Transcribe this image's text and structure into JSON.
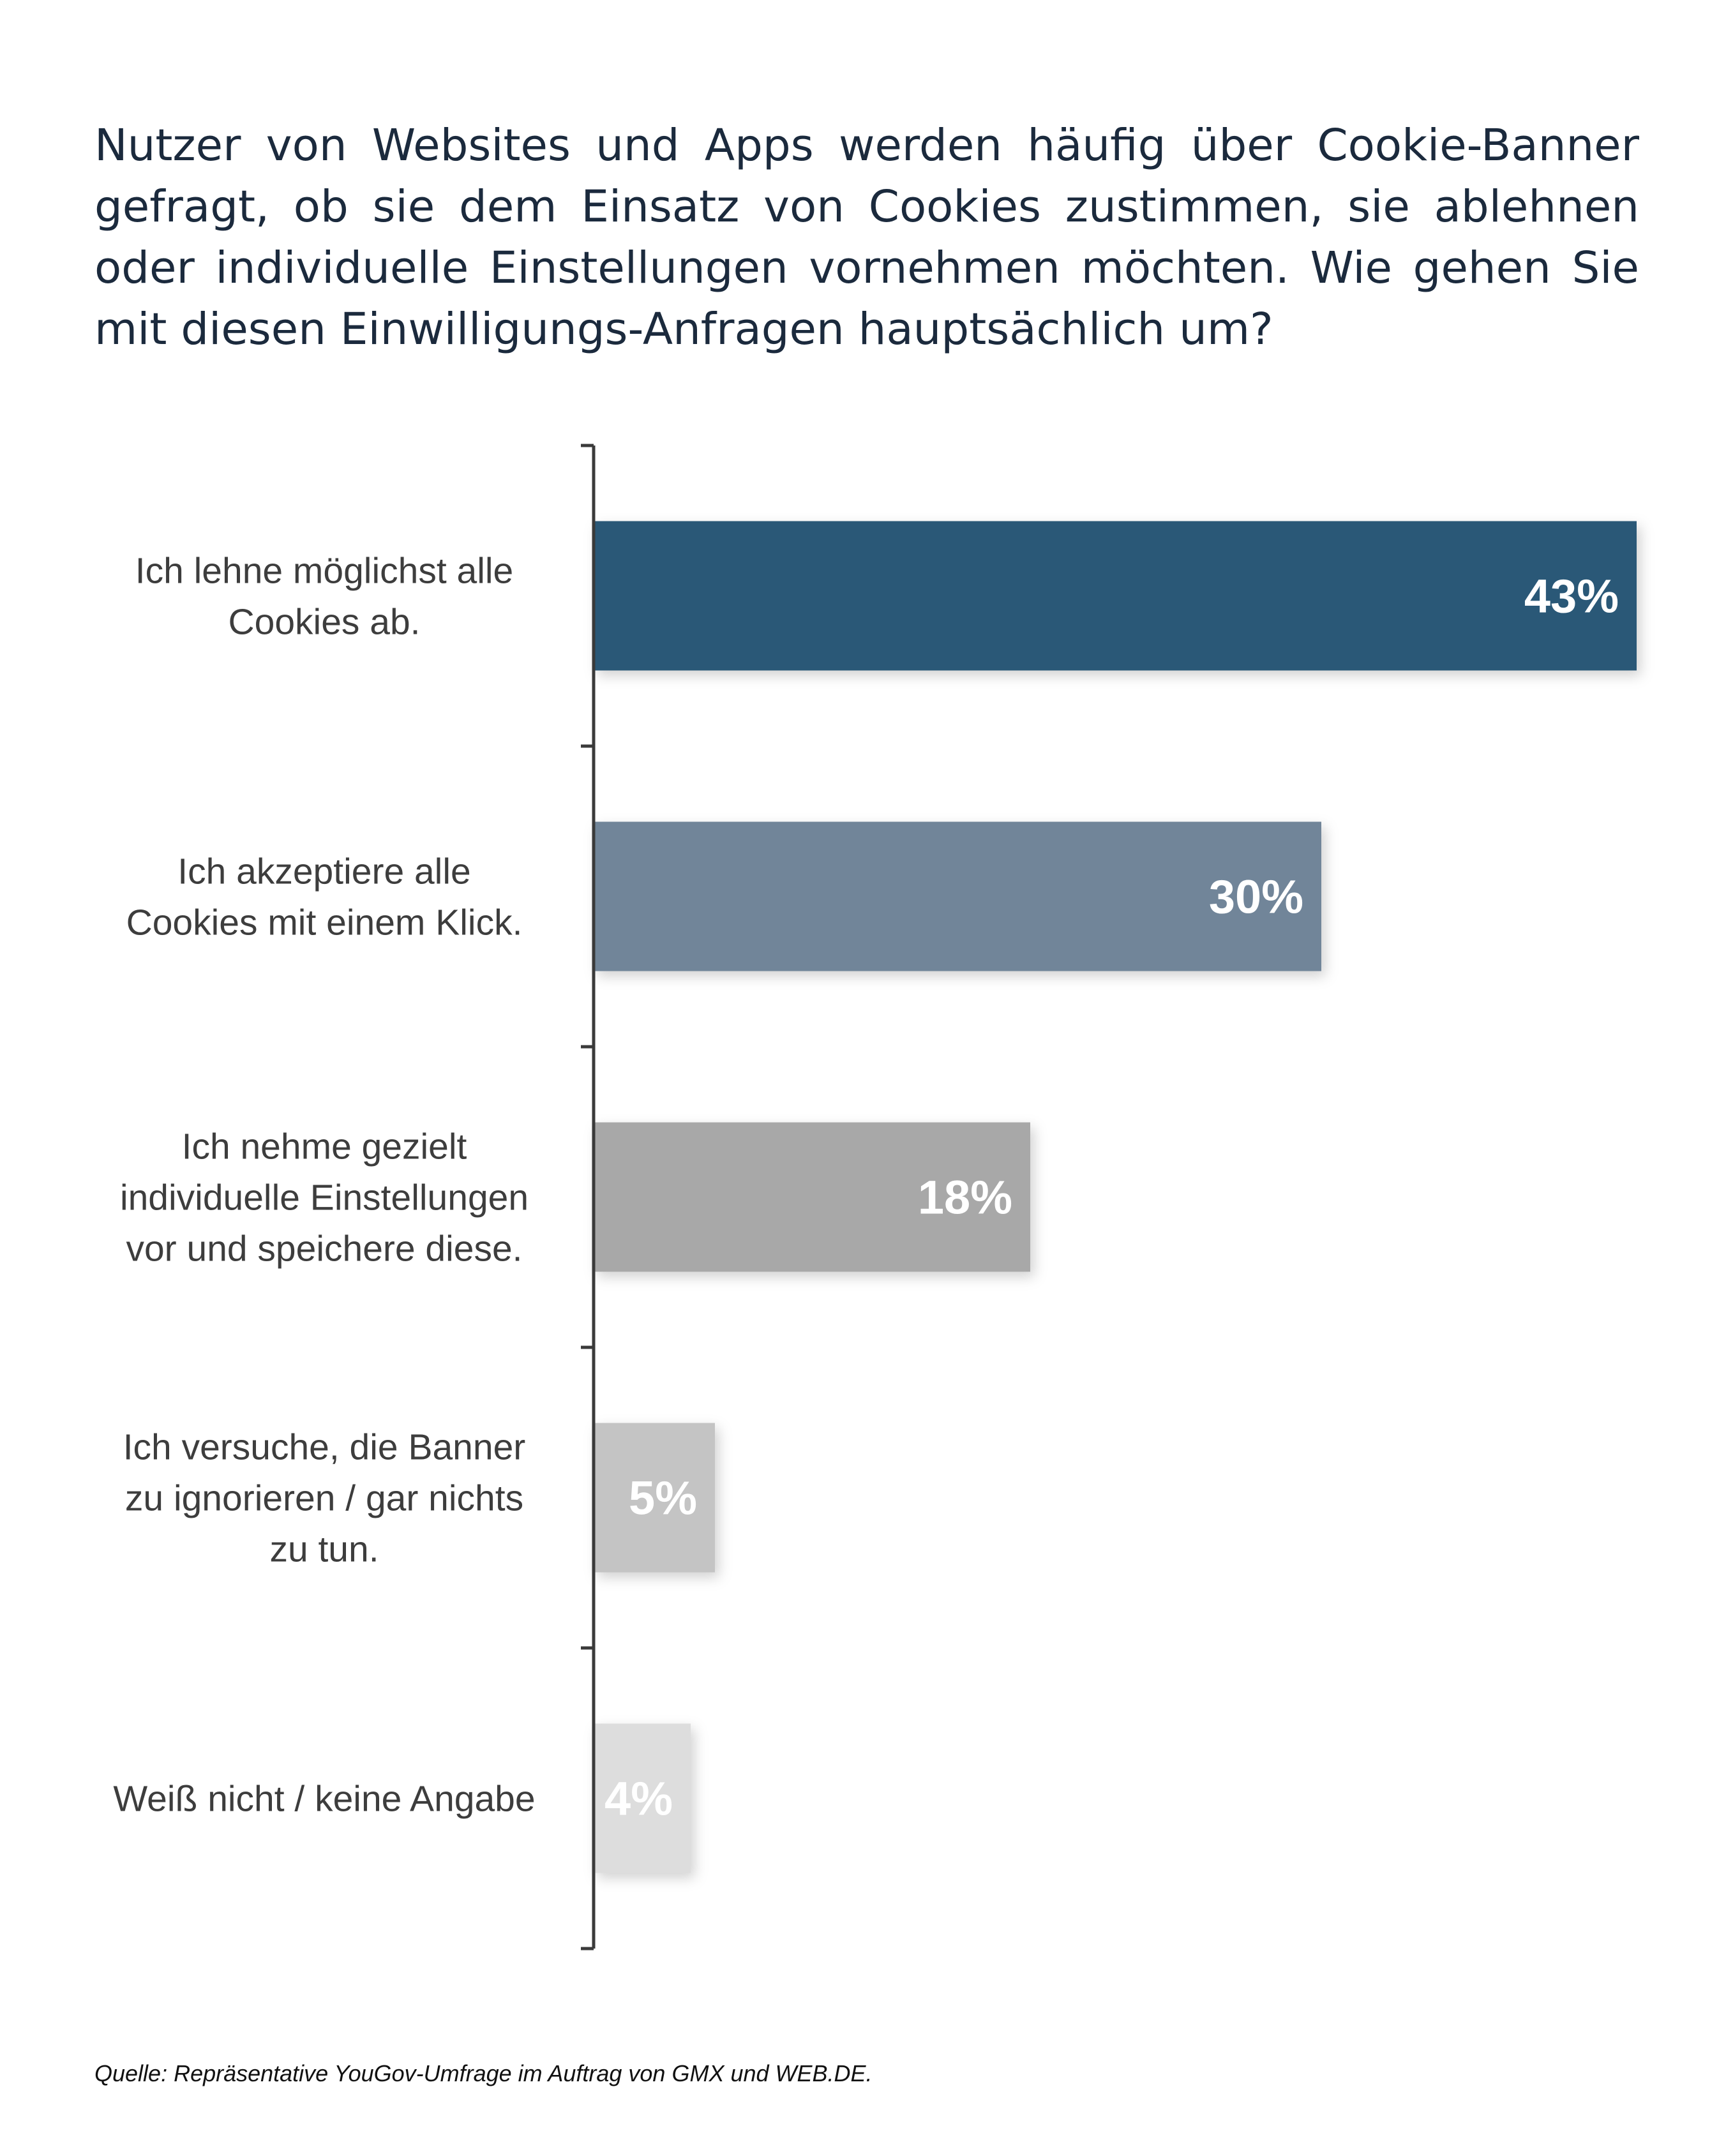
{
  "title": "Nutzer von Websites und Apps werden häufig über Cookie-Banner gefragt, ob sie dem Einsatz von Cookies zustimmen, sie ablehnen oder individuelle Einstellungen vornehmen möchten. Wie gehen Sie mit diesen Einwilligungs-Anfragen hauptsächlich um?",
  "source": "Quelle: Repräsentative YouGov-Umfrage im Auftrag von GMX und WEB.DE.",
  "chart_data": {
    "type": "bar",
    "orientation": "horizontal",
    "title": "Nutzer von Websites und Apps werden häufig über Cookie-Banner gefragt, ob sie dem Einsatz von Cookies zustimmen, sie ablehnen oder individuelle Einstellungen vornehmen möchten. Wie gehen Sie mit diesen Einwilligungs-Anfragen hauptsächlich um?",
    "categories": [
      [
        "Ich lehne möglichst alle",
        "Cookies ab."
      ],
      [
        "Ich akzeptiere alle",
        "Cookies mit einem Klick."
      ],
      [
        "Ich nehme gezielt",
        "individuelle Einstellungen",
        "vor und speichere diese."
      ],
      [
        "Ich versuche, die Banner",
        "zu ignorieren / gar nichts",
        "zu tun."
      ],
      [
        "Weiß nicht / keine Angabe"
      ]
    ],
    "values": [
      43,
      30,
      18,
      5,
      4
    ],
    "value_labels": [
      "43%",
      "30%",
      "18%",
      "5%",
      "4%"
    ],
    "colors": [
      "#2c5877",
      "#718599",
      "#a8a8a8",
      "#c4c4c4",
      "#dddddd"
    ],
    "xlim": [
      0,
      43
    ],
    "grid": false,
    "legend": "none"
  }
}
